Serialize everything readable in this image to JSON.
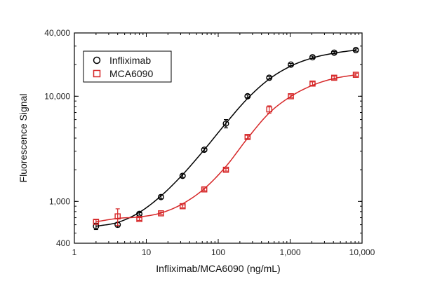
{
  "chart_data": {
    "type": "scatter",
    "title": "",
    "xlabel": "Infliximab/MCA6090 (ng/mL)",
    "ylabel": "Fluorescence Signal",
    "xscale": "log",
    "yscale": "log",
    "xlim": [
      1,
      10000
    ],
    "ylim": [
      400,
      40000
    ],
    "x_ticks": [
      {
        "value": 1,
        "label": "1"
      },
      {
        "value": 10,
        "label": "10"
      },
      {
        "value": 100,
        "label": "100"
      },
      {
        "value": 1000,
        "label": "1,000"
      },
      {
        "value": 10000,
        "label": "10,000"
      }
    ],
    "y_ticks": [
      {
        "value": 400,
        "label": "400"
      },
      {
        "value": 1000,
        "label": "1,000"
      },
      {
        "value": 10000,
        "label": "10,000"
      },
      {
        "value": 40000,
        "label": "40,000"
      }
    ],
    "grid": false,
    "legend_position": "top-left",
    "series": [
      {
        "name": "Infliximab",
        "marker": "circle",
        "color": "#000000",
        "fit_curve": true,
        "points": [
          {
            "x": 2,
            "y": 580,
            "err": 40
          },
          {
            "x": 4,
            "y": 600,
            "err": 30
          },
          {
            "x": 8,
            "y": 760,
            "err": 20
          },
          {
            "x": 16,
            "y": 1100,
            "err": 40
          },
          {
            "x": 32,
            "y": 1750,
            "err": 60
          },
          {
            "x": 64,
            "y": 3100,
            "err": 100
          },
          {
            "x": 128,
            "y": 5500,
            "err": 500
          },
          {
            "x": 256,
            "y": 10000,
            "err": 300
          },
          {
            "x": 512,
            "y": 15000,
            "err": 400
          },
          {
            "x": 1024,
            "y": 20000,
            "err": 500
          },
          {
            "x": 2048,
            "y": 23500,
            "err": 600
          },
          {
            "x": 4096,
            "y": 26000,
            "err": 700
          },
          {
            "x": 8192,
            "y": 27500,
            "err": 700
          }
        ]
      },
      {
        "name": "MCA6090",
        "marker": "square",
        "color": "#d62728",
        "fit_curve": true,
        "points": [
          {
            "x": 2,
            "y": 640,
            "err": 30
          },
          {
            "x": 4,
            "y": 720,
            "err": 130
          },
          {
            "x": 8,
            "y": 680,
            "err": 20
          },
          {
            "x": 16,
            "y": 770,
            "err": 20
          },
          {
            "x": 32,
            "y": 900,
            "err": 25
          },
          {
            "x": 64,
            "y": 1300,
            "err": 40
          },
          {
            "x": 128,
            "y": 2000,
            "err": 60
          },
          {
            "x": 256,
            "y": 4100,
            "err": 150
          },
          {
            "x": 512,
            "y": 7500,
            "err": 600
          },
          {
            "x": 1024,
            "y": 10000,
            "err": 300
          },
          {
            "x": 2048,
            "y": 13200,
            "err": 500
          },
          {
            "x": 4096,
            "y": 15000,
            "err": 500
          },
          {
            "x": 8192,
            "y": 16000,
            "err": 500
          }
        ]
      }
    ]
  }
}
